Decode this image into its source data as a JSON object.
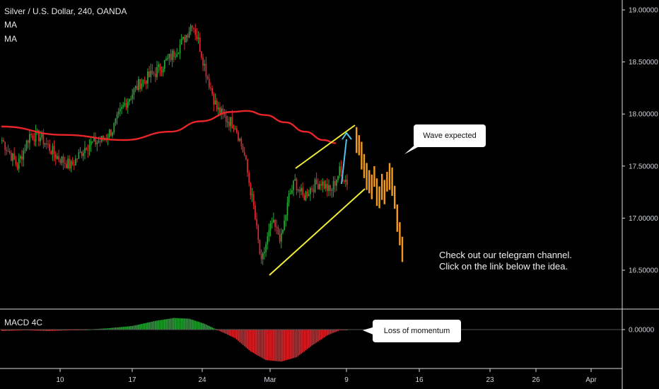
{
  "legend": {
    "symbol_line": "Silver / U.S. Dollar, 240, OANDA",
    "ma1": "MA",
    "ma2": "MA",
    "macd": "MACD 4C"
  },
  "annotations": {
    "wave_expected": "Wave expected",
    "loss_of_momentum": "Loss of momentum",
    "telegram_line1": "Check out our telegram channel.",
    "telegram_line2": "Click on the link below the idea."
  },
  "colors": {
    "up": "#26a836",
    "down": "#e0282e",
    "projection": "#f39a1e",
    "ma": "#e8262a",
    "channel": "#f3ee36",
    "arrow": "#4fc3e8",
    "background": "#000000"
  },
  "chart_data": {
    "type": "candlestick",
    "symbol": "Silver / U.S. Dollar",
    "timeframe": "240",
    "ylim": [
      16.25,
      19.05
    ],
    "y_ticks": [
      "19.00000",
      "18.50000",
      "18.00000",
      "17.50000",
      "17.00000",
      "16.50000"
    ],
    "x_ticks": [
      "10",
      "17",
      "24",
      "Mar",
      "9",
      "16",
      "23",
      "26",
      "Apr"
    ],
    "price_waypoints": [
      [
        0,
        17.75
      ],
      [
        10,
        17.5
      ],
      [
        18,
        17.8
      ],
      [
        25,
        17.78
      ],
      [
        35,
        17.6
      ],
      [
        45,
        17.5
      ],
      [
        55,
        17.7
      ],
      [
        65,
        17.75
      ],
      [
        72,
        17.85
      ],
      [
        80,
        18.1
      ],
      [
        90,
        18.3
      ],
      [
        100,
        18.4
      ],
      [
        110,
        18.55
      ],
      [
        118,
        18.7
      ],
      [
        124,
        18.88
      ],
      [
        128,
        18.7
      ],
      [
        134,
        18.35
      ],
      [
        140,
        18.05
      ],
      [
        146,
        17.95
      ],
      [
        152,
        17.9
      ],
      [
        158,
        17.6
      ],
      [
        164,
        17.1
      ],
      [
        169,
        16.55
      ],
      [
        172,
        16.75
      ],
      [
        176,
        16.95
      ],
      [
        182,
        16.8
      ],
      [
        187,
        17.2
      ],
      [
        191,
        17.35
      ],
      [
        196,
        17.2
      ],
      [
        202,
        17.3
      ],
      [
        208,
        17.35
      ],
      [
        214,
        17.25
      ],
      [
        220,
        17.45
      ],
      [
        225,
        17.35
      ]
    ],
    "projection_values": [
      17.75,
      17.7,
      17.6,
      17.5,
      17.4,
      17.35,
      17.3,
      17.4,
      17.25,
      17.2,
      17.3,
      17.25,
      17.35,
      17.4,
      17.35,
      17.2,
      17.0,
      16.85,
      16.7
    ],
    "moving_average": [
      [
        0,
        17.88
      ],
      [
        40,
        17.8
      ],
      [
        80,
        17.75
      ],
      [
        110,
        17.83
      ],
      [
        130,
        17.93
      ],
      [
        150,
        18.02
      ],
      [
        160,
        18.03
      ],
      [
        172,
        17.99
      ],
      [
        185,
        17.92
      ],
      [
        198,
        17.83
      ],
      [
        210,
        17.75
      ],
      [
        218,
        17.72
      ]
    ],
    "macd_histogram_waypoints": [
      [
        0,
        -0.02
      ],
      [
        15,
        -0.01
      ],
      [
        30,
        -0.02
      ],
      [
        45,
        -0.01
      ],
      [
        55,
        0.0
      ],
      [
        70,
        0.02
      ],
      [
        85,
        0.05
      ],
      [
        100,
        0.12
      ],
      [
        112,
        0.16
      ],
      [
        122,
        0.15
      ],
      [
        132,
        0.08
      ],
      [
        142,
        -0.02
      ],
      [
        152,
        -0.12
      ],
      [
        162,
        -0.3
      ],
      [
        172,
        -0.42
      ],
      [
        182,
        -0.44
      ],
      [
        192,
        -0.38
      ],
      [
        202,
        -0.22
      ],
      [
        212,
        -0.08
      ],
      [
        220,
        -0.01
      ],
      [
        225,
        0.0
      ]
    ],
    "macd_ylim": [
      -0.5,
      0.22
    ],
    "macd_y_ticks": [
      "0.00000"
    ]
  }
}
